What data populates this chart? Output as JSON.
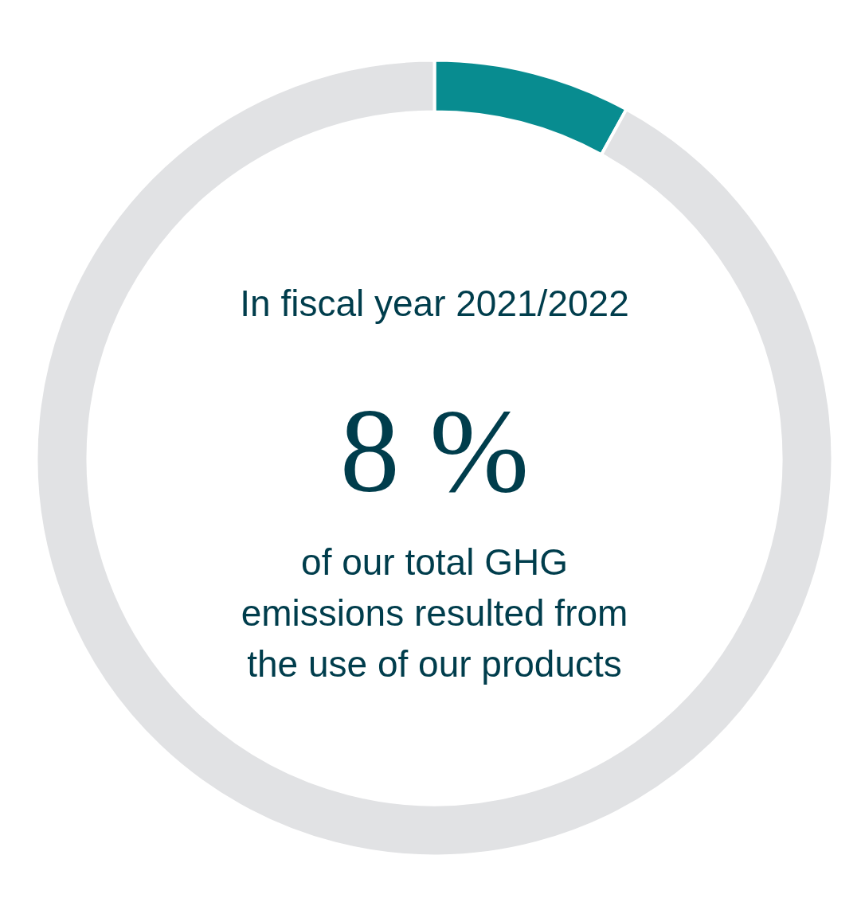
{
  "chart_data": {
    "type": "donut",
    "title": "In fiscal year 2021/2022",
    "categories": [
      null,
      null
    ],
    "values": [
      8,
      92
    ],
    "colors": [
      "#088c90",
      "#e1e2e4"
    ],
    "annotations": [
      "8 %",
      "of our total GHG emissions resulted from the use of our products"
    ]
  }
}
